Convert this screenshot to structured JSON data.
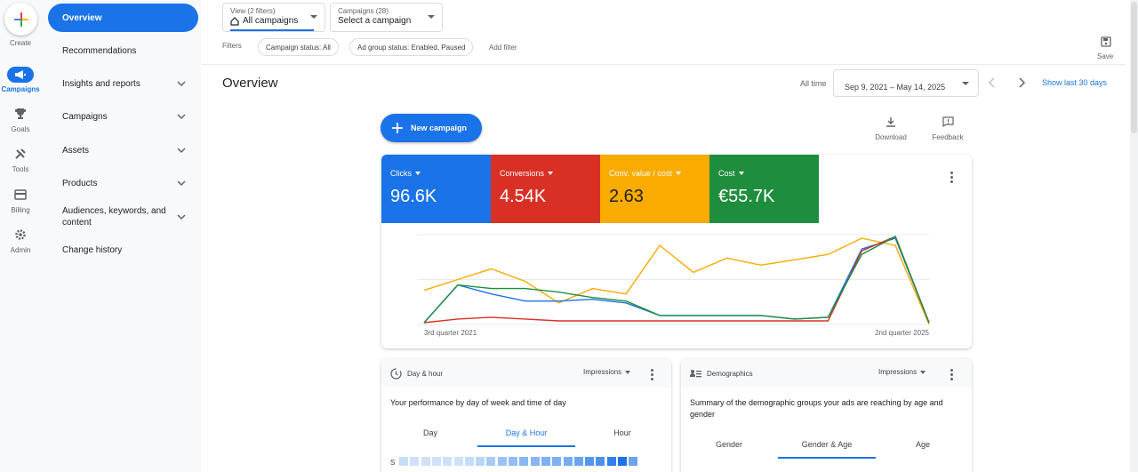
{
  "rail": {
    "create": "Create",
    "items": [
      {
        "label": "Campaigns",
        "icon": "megaphone-icon",
        "active": true
      },
      {
        "label": "Goals",
        "icon": "trophy-icon"
      },
      {
        "label": "Tools",
        "icon": "tools-icon"
      },
      {
        "label": "Billing",
        "icon": "credit-card-icon"
      },
      {
        "label": "Admin",
        "icon": "gear-icon"
      }
    ]
  },
  "nav": {
    "items": [
      {
        "label": "Overview",
        "active": true
      },
      {
        "label": "Recommendations"
      },
      {
        "label": "Insights and reports",
        "expandable": true
      },
      {
        "label": "Campaigns",
        "expandable": true
      },
      {
        "label": "Assets",
        "expandable": true
      },
      {
        "label": "Products",
        "expandable": true
      },
      {
        "label": "Audiences, keywords, and content",
        "expandable": true
      },
      {
        "label": "Change history"
      }
    ]
  },
  "toolbar": {
    "view_small": "View (2 filters)",
    "view_value": "All campaigns",
    "campaigns_small": "Campaigns (28)",
    "campaigns_value": "Select a campaign",
    "filters_label": "Filters",
    "chips": [
      "Campaign status: All",
      "Ad group status: Enabled, Paused"
    ],
    "add_filter": "Add filter",
    "save": "Save"
  },
  "header": {
    "title": "Overview",
    "all_time": "All time",
    "date_range": "Sep 9, 2021 – May 14, 2025",
    "show_last": "Show last 30 days"
  },
  "actions": {
    "new_campaign": "New campaign",
    "download": "Download",
    "feedback": "Feedback"
  },
  "metrics": [
    {
      "label": "Clicks",
      "value": "96.6K",
      "color": "#1a73e8"
    },
    {
      "label": "Conversions",
      "value": "4.54K",
      "color": "#d93025"
    },
    {
      "label": "Conv. value / cost",
      "value": "2.63",
      "color": "#f9ab00"
    },
    {
      "label": "Cost",
      "value": "€55.7K",
      "color": "#1e8e3e"
    }
  ],
  "chart_data": {
    "type": "line",
    "x_start_label": "3rd quarter 2021",
    "x_end_label": "2nd quarter 2025",
    "ylim": [
      0,
      100
    ],
    "grid": true,
    "series": [
      {
        "color": "#f9ab00",
        "values": [
          38,
          50,
          62,
          48,
          24,
          40,
          34,
          88,
          58,
          74,
          66,
          72,
          78,
          96,
          88,
          0
        ]
      },
      {
        "color": "#1a73e8",
        "values": [
          2,
          44,
          34,
          26,
          26,
          28,
          24,
          10,
          10,
          10,
          10,
          6,
          8,
          84,
          96,
          2
        ]
      },
      {
        "color": "#d93025",
        "values": [
          2,
          6,
          8,
          6,
          4,
          4,
          4,
          4,
          4,
          4,
          4,
          4,
          4,
          82,
          98,
          2
        ]
      },
      {
        "color": "#1e8e3e",
        "values": [
          2,
          44,
          40,
          40,
          36,
          30,
          26,
          10,
          10,
          10,
          10,
          6,
          8,
          78,
          98,
          2
        ]
      }
    ]
  },
  "dayhour": {
    "title": "Day & hour",
    "dropdown": "Impressions",
    "description": "Your performance by day of week and time of day",
    "tabs": [
      "Day",
      "Day & Hour",
      "Hour"
    ],
    "active_tab": 1,
    "row_label": "S",
    "cells": [
      0.15,
      0.1,
      0.1,
      0.1,
      0.1,
      0.1,
      0.15,
      0.2,
      0.3,
      0.35,
      0.4,
      0.45,
      0.45,
      0.5,
      0.5,
      0.55,
      0.6,
      0.7,
      0.75,
      0.9,
      1.0,
      0.6
    ]
  },
  "demographics": {
    "title": "Demographics",
    "dropdown": "Impressions",
    "description": "Summary of the demographic groups your ads are reaching by age and gender",
    "tabs": [
      "Gender",
      "Gender & Age",
      "Age"
    ],
    "active_tab": 1
  }
}
